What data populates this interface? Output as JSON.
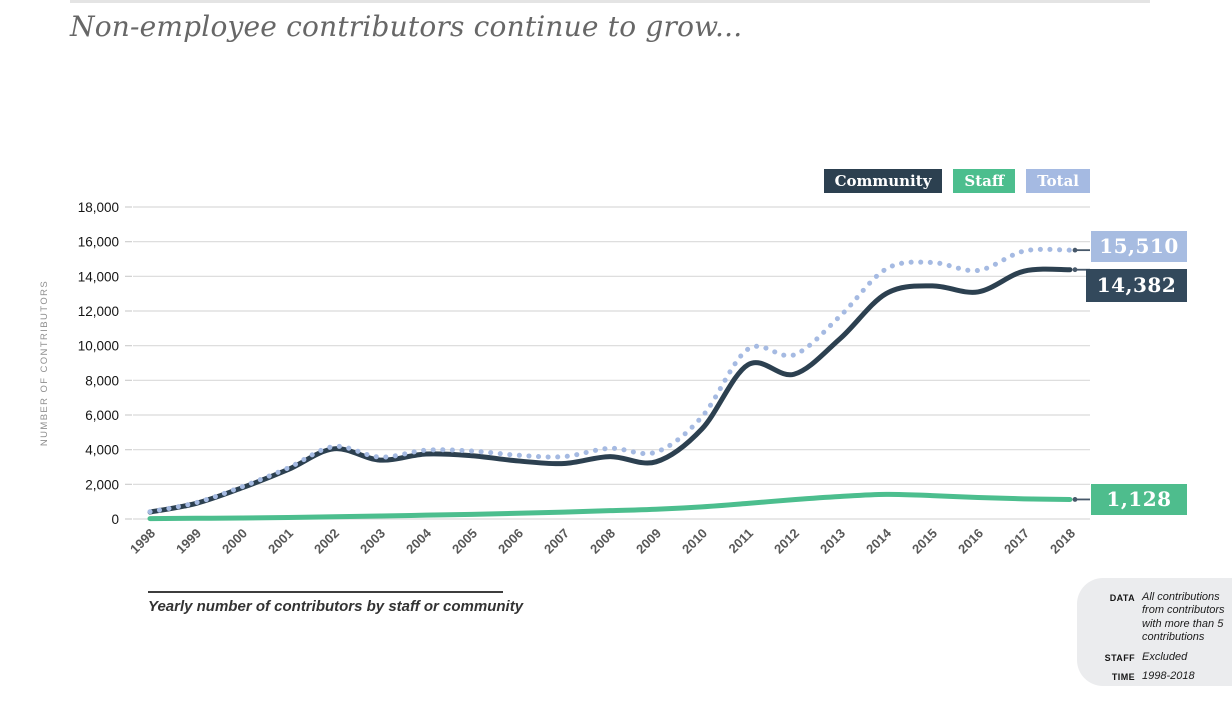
{
  "page": {
    "title": "Non-employee contributors continue to grow..."
  },
  "legend": {
    "items": [
      {
        "label": "Community",
        "color": "#2c4050"
      },
      {
        "label": "Staff",
        "color": "#4cbe8e"
      },
      {
        "label": "Total",
        "color": "#a5bae2"
      }
    ]
  },
  "chart_data": {
    "type": "line",
    "title": "Yearly number of contributors by staff or community",
    "ylabel": "NUMBER OF CONTRIBUTORS",
    "ylim": [
      0,
      18000
    ],
    "ytick_step": 2000,
    "grid": "horizontal",
    "legend_position": "top-right",
    "x": [
      1998,
      1999,
      2000,
      2001,
      2002,
      2003,
      2004,
      2005,
      2006,
      2007,
      2008,
      2009,
      2010,
      2011,
      2012,
      2013,
      2014,
      2015,
      2016,
      2017,
      2018
    ],
    "series": [
      {
        "name": "Staff",
        "color": "#4cbe8e",
        "style": "solid",
        "values": [
          20,
          40,
          60,
          90,
          130,
          170,
          220,
          270,
          330,
          400,
          480,
          560,
          700,
          900,
          1120,
          1300,
          1420,
          1350,
          1240,
          1160,
          1128
        ],
        "end_label": "1,128"
      },
      {
        "name": "Community",
        "color": "#2c4050",
        "style": "solid",
        "values": [
          400,
          900,
          1800,
          2850,
          4050,
          3400,
          3750,
          3650,
          3350,
          3200,
          3600,
          3300,
          5200,
          8900,
          8350,
          10400,
          13000,
          13450,
          13100,
          14300,
          14382
        ],
        "end_label": "14,382"
      },
      {
        "name": "Total",
        "color": "#a5bae2",
        "style": "dotted",
        "values": [
          420,
          940,
          1860,
          2940,
          4180,
          3570,
          3970,
          3920,
          3680,
          3600,
          4080,
          3860,
          5900,
          9800,
          9470,
          11700,
          14420,
          14800,
          14340,
          15460,
          15510
        ],
        "end_label": "15,510"
      }
    ]
  },
  "badges": {
    "total": {
      "text": "15,510",
      "bg": "#a7bce1"
    },
    "community": {
      "text": "14,382",
      "bg": "#33495c"
    },
    "staff": {
      "text": "1,128",
      "bg": "#4ebd8d"
    }
  },
  "caption": {
    "text": "Yearly number of contributors by staff or community"
  },
  "info_panel": {
    "rows": [
      {
        "label": "DATA",
        "value": "All contributions from contributors with more than 5 contributions"
      },
      {
        "label": "STAFF",
        "value": "Excluded"
      },
      {
        "label": "TIME",
        "value": "1998-2018"
      }
    ]
  }
}
